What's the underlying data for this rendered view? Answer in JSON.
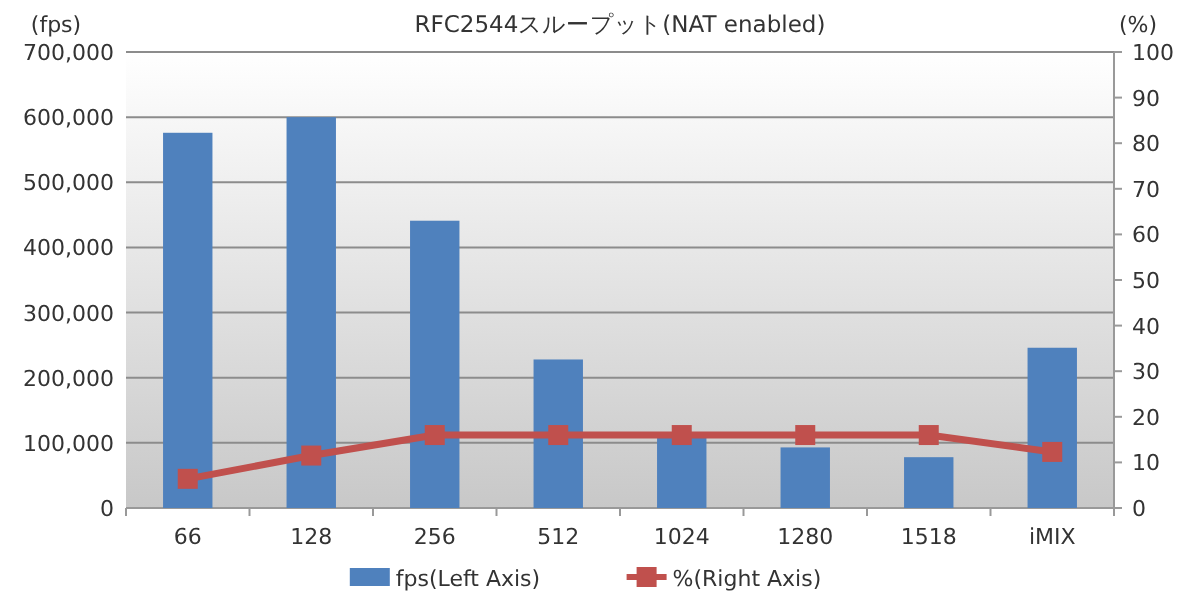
{
  "chart_data": {
    "type": "bar",
    "title": "RFC2544スループット(NAT enabled)",
    "ylabel": "(fps)",
    "y2label": "(%)",
    "categories": [
      "66",
      "128",
      "256",
      "512",
      "1024",
      "1280",
      "1518",
      "iMIX"
    ],
    "series": [
      {
        "name": "fps(Left Axis)",
        "color": "#4f81bd",
        "values": [
          576000,
          600000,
          441000,
          228000,
          115000,
          93000,
          78000,
          246000
        ]
      },
      {
        "name": "%(Right Axis)",
        "type": "line",
        "axis": "y2",
        "color": "#c0504d",
        "marker": "square",
        "values": [
          6.4,
          11.5,
          16,
          16,
          16,
          16,
          16,
          12.3
        ]
      }
    ],
    "ylim": [
      0,
      700000
    ],
    "yticks": [
      {
        "value": 0,
        "label": "0"
      },
      {
        "value": 100000,
        "label": "100,000"
      },
      {
        "value": 200000,
        "label": "200,000"
      },
      {
        "value": 300000,
        "label": "300,000"
      },
      {
        "value": 400000,
        "label": "400,000"
      },
      {
        "value": 500000,
        "label": "500,000"
      },
      {
        "value": 600000,
        "label": "600,000"
      },
      {
        "value": 700000,
        "label": "700,000"
      }
    ],
    "y2lim": [
      0,
      100
    ],
    "y2ticks": [
      0,
      10,
      20,
      30,
      40,
      50,
      60,
      70,
      80,
      90,
      100
    ],
    "grid": "y",
    "legend": "bottom"
  }
}
